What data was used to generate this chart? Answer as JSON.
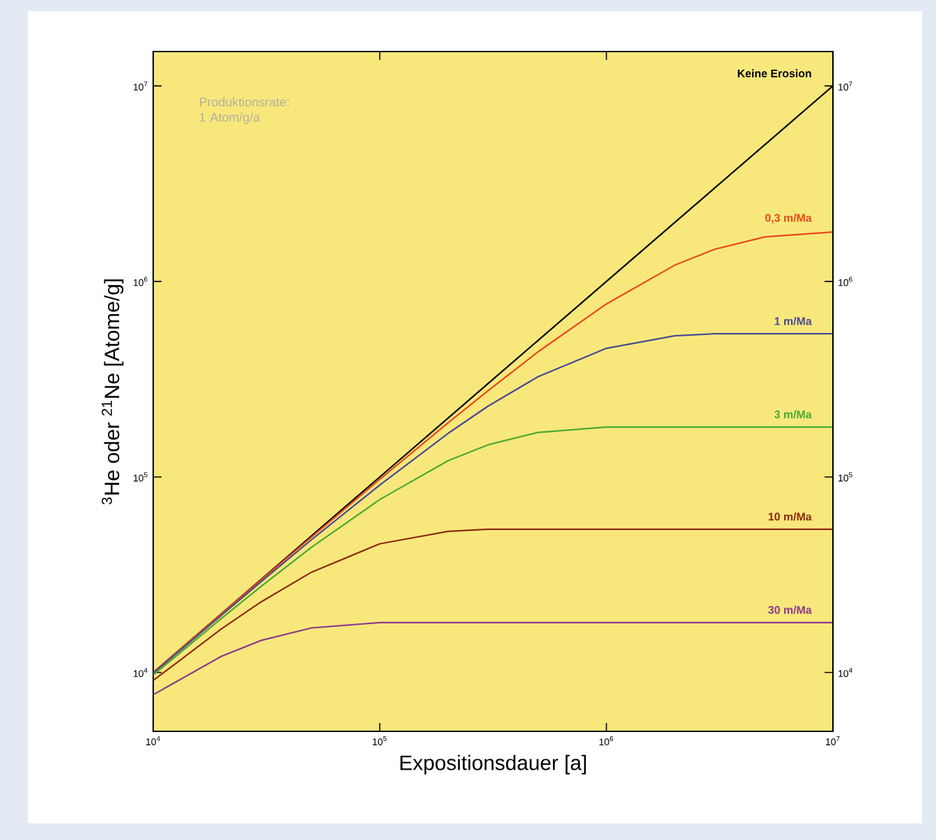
{
  "chart_data": {
    "type": "line",
    "xlabel": "Expositionsdauer [a]",
    "ylabel": "$^{3}$He oder $^{21}$Ne [Atome/g]",
    "log": "xy",
    "grid": false,
    "legend": false,
    "annotations": [
      "Produktionsrate: 1 Atom/g/a"
    ],
    "xlim": [
      10000,
      10000000
    ],
    "ylim": [
      5000,
      15000000
    ],
    "xticks": [
      {
        "value": 10000,
        "label": "10$^{4}$"
      },
      {
        "value": 100000,
        "label": "10$^{5}$"
      },
      {
        "value": 1000000,
        "label": "10$^{6}$"
      },
      {
        "value": 10000000,
        "label": "10$^{7}$"
      }
    ],
    "yticks": [
      {
        "value": 10000,
        "label": "10$^{4}$"
      },
      {
        "value": 100000,
        "label": "10$^{5}$"
      },
      {
        "value": 1000000,
        "label": "10$^{6}$"
      },
      {
        "value": 10000000,
        "label": "10$^{7}$"
      }
    ],
    "x": [
      10000,
      20000,
      30000,
      50000,
      100000,
      200000,
      300000,
      500000,
      1000000,
      2000000,
      3000000,
      5000000,
      10000000
    ],
    "series": [
      {
        "name": "Keine Erosion",
        "color": "#000000",
        "values": [
          10000,
          20000,
          30000,
          50000,
          100000,
          200000,
          300000,
          500000,
          1000000,
          2000000,
          3000000,
          5000000,
          10000000
        ]
      },
      {
        "name": "0,3 m/Ma",
        "color": "#e8481c",
        "values": [
          10000,
          19900,
          29800,
          49300,
          97300,
          189000,
          276000,
          437000,
          767000,
          1210000,
          1460000,
          1690000,
          1790000
        ]
      },
      {
        "name": "1 m/Ma",
        "color": "#4a4a90",
        "values": [
          9900,
          19600,
          29200,
          47800,
          91000,
          167000,
          230000,
          326000,
          455000,
          527000,
          540000,
          540000,
          540000
        ]
      },
      {
        "name": "3 m/Ma",
        "color": "#4aa832",
        "values": [
          9700,
          18900,
          27600,
          43700,
          76700,
          121000,
          146000,
          169000,
          180000,
          180000,
          180000,
          180000,
          180000
        ]
      },
      {
        "name": "10 m/Ma",
        "color": "#8b2a10",
        "values": [
          9100,
          16700,
          23000,
          32600,
          45500,
          52700,
          54000,
          54000,
          54000,
          54000,
          54000,
          54000,
          54000
        ]
      },
      {
        "name": "30 m/Ma",
        "color": "#8a3a8a",
        "values": [
          7700,
          12100,
          14600,
          16900,
          18000,
          18000,
          18000,
          18000,
          18000,
          18000,
          18000,
          18000,
          18000
        ]
      }
    ]
  }
}
